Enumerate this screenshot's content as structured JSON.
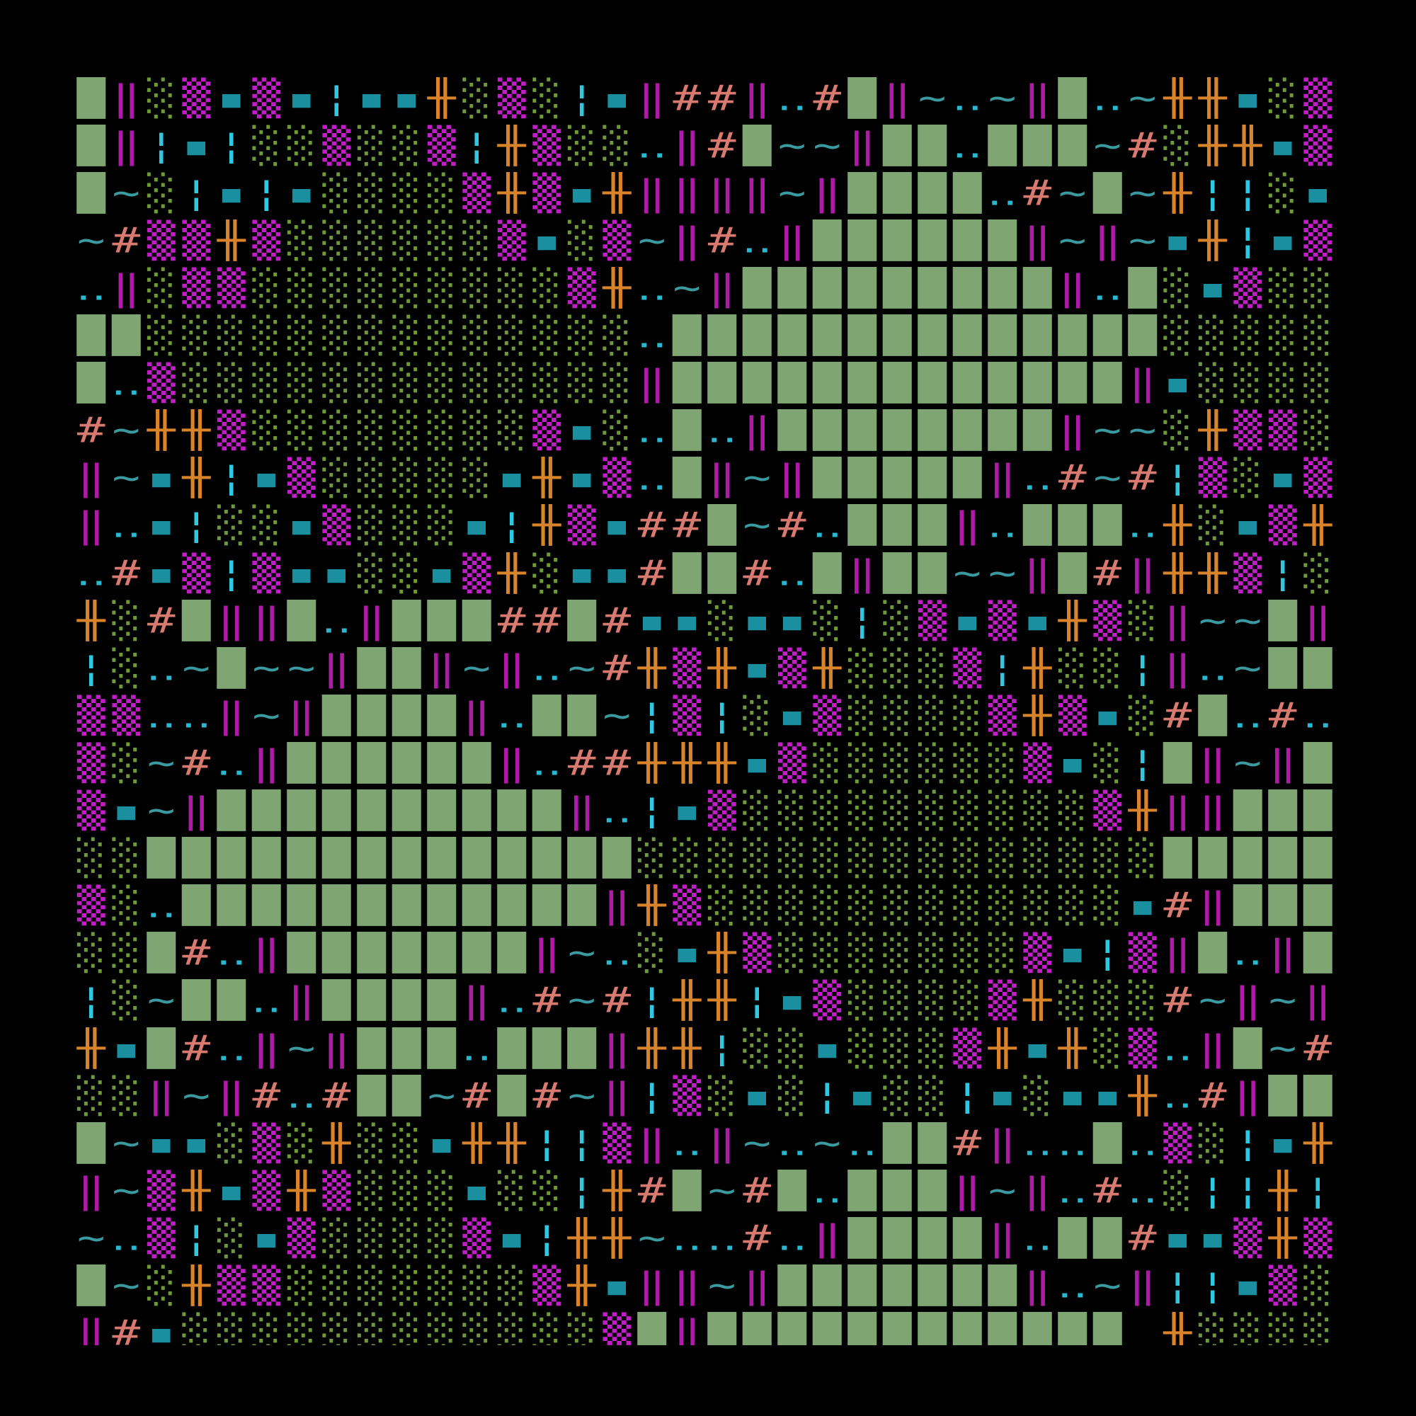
{
  "grid": {
    "rows": [
      "█‖░▒▪▒▪¦▪▪╫░▒░¦▪‖##‖‥#█‖~‥~‖█‥~╫╫▪░▒",
      "█‖¦▪¦░░▒░░▒¦╫▒░░‥‖#█~~‖██‥███~#░╫╫▪▒",
      "█~░¦▪¦▪░░░░▒╫▒▪╫‖‖‖‖~‖████‥#~█~╫¦¦░▪",
      "~#▒▒╫▒░░░░░░▒▪░▒~‖#‥‖██████‖~‖~▪╫¦▪▒",
      "‥‖░▒▒░░░░░░░░░▒╫‥~‖█████████‖‥█░▪▒░░",
      "██░░░░░░░░░░░░░░‥██████████████░░░░░",
      "█‥▒░░░░░░░░░░░░░‖█████████████‖▪░░░░",
      "#~╫╫▒░░░░░░░░▒▪░‥█‥‖████████‖~~░╫▒▒░",
      "‖~▪╫¦▪▒░░░░░▪╫▪▒‥█‖~‖█████‖‥#~#¦▒░▪▒",
      "‖‥▪¦░░▪▒░░░▪¦╫▒▪##█~#‥███‖‥███‥╫░▪▒╫",
      "‥#▪▒¦▒▪▪░░▪▒╫░▪▪#██#‥█‖██~~‖█#‖╫╫▒¦░",
      "╫░#█‖‖█‥‖███##█#▪▪░▪▪░¦░▒▪▒▪╫▒░‖~~█‖",
      "¦░‥~█~~‖██‖~‖‥~#╫▒╫▪▒╫░░░▒¦╫░░¦‖‥~██",
      "▒▒‥‥‖~‖████‖‥██~¦▒¦░▪▒░░░░▒╫▒▪░#█‥#‥",
      "▒░~#‥‖██████‖‥##╫╫╫▪▒░░░░░░▒▪░¦█‖~‖█",
      "▒▪~‖██████████‖‥¦▪▒░░░░░░░░░░▒╫‖‖███",
      "░░██████████████░░░░░░░░░░░░░░░█████",
      "▒░‥████████████‖╫▒░░░░░░░░░░░░▪#‖███",
      "░░█#‥‖███████‖~‥░▪╫▒░░░░░░░▒▪¦▒‖█‥‖█",
      "¦░~██‥‖████‖‥#~#¦╫╫¦▪▒░░░░▒╫░░░#~‖~‖",
      "╫▪█#‥‖~‖███‥███‖╫╫¦░░▪░░░▒╫▪╫░▒‥‖█~#",
      "░░‖~‖#‥#██~#█#~‖¦▒░▪░¦▪░░¦▪░▪▪╫‥#‖██",
      "█~▪▪░▒░╫░░▪╫╫¦¦▒‖‥‖~‥~‥██#‖‥‥█‥▒░¦▪╫",
      "‖~▒╫▪▒╫▒░░░▪░░¦╫#█~#█‥███‖~‖‥#‥░¦¦╫¦",
      "~‥▒¦░▪▒░░░░▒▪¦╫╫~‥‥#‥‖████‖‥██#▪▪▒╫▒",
      "█~░╫▒▒░░░░░░░▒╫▪‖‖~‖███████‖‥~‖¦¦▪▒░",
      "‖#▪░░░░░░░░░░░░▒█‖████████████ ╫░░░░"
    ]
  }
}
